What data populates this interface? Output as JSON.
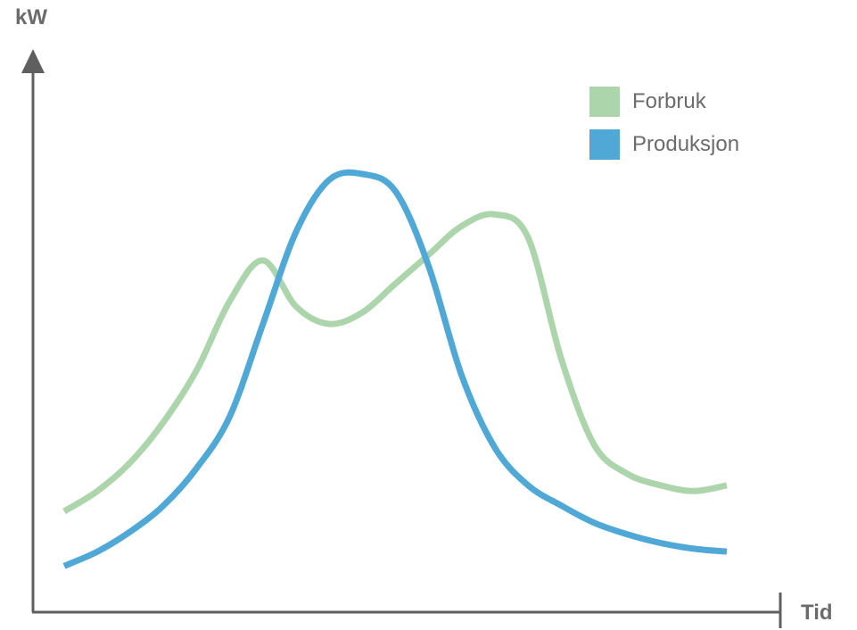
{
  "chart_data": {
    "type": "line",
    "title": "",
    "xlabel": "Tid",
    "ylabel": "kW",
    "grid": false,
    "legend_position": "top-right",
    "x": [
      0,
      0.5,
      1,
      1.5,
      2,
      2.5,
      3,
      3.5,
      4,
      4.5,
      5,
      5.5,
      6,
      6.5,
      7,
      7.5,
      8,
      8.5,
      9,
      9.5,
      10
    ],
    "xlim": [
      0,
      10
    ],
    "ylim": [
      0,
      100
    ],
    "series": [
      {
        "name": "Forbruk",
        "color": "#acd5ab",
        "values": [
          17.5,
          21,
          26,
          33,
          42,
          54,
          61,
          53,
          50,
          52,
          57,
          62,
          67,
          69,
          65,
          44,
          29,
          24,
          22,
          21,
          22
        ]
      },
      {
        "name": "Produksjon",
        "color": "#4fa8d6",
        "values": [
          8,
          10.5,
          14,
          18.5,
          25,
          34,
          50,
          66,
          75,
          76,
          73,
          60,
          41,
          28.5,
          22,
          18.5,
          15.5,
          13.5,
          12,
          11,
          10.5
        ]
      }
    ]
  }
}
